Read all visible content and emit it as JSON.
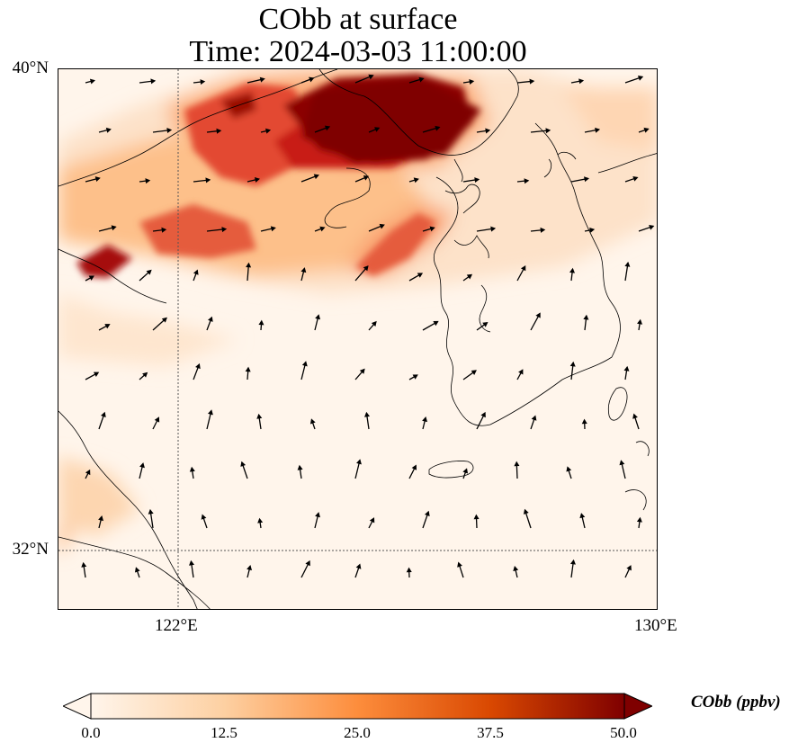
{
  "title": {
    "line1": "CObb at surface",
    "line2": "Time: 2024-03-03 11:00:00"
  },
  "map": {
    "variable": "CObb",
    "units": "ppbv",
    "lat_labels": [
      "40°N",
      "32°N"
    ],
    "lon_labels": [
      "122°E",
      "130°E"
    ],
    "extent": {
      "lon_min": 120,
      "lon_max": 130,
      "lat_min": 31,
      "lat_max": 40
    },
    "colormap": [
      "#fff5eb",
      "#fdd0a2",
      "#fd8d3c",
      "#d94801",
      "#7f0000"
    ],
    "background_color": "#fff5eb",
    "coastline_color": "#000000",
    "gridline_style": "dotted"
  },
  "colorbar": {
    "label": "CObb (ppbv)",
    "ticks": [
      "0.0",
      "12.5",
      "25.0",
      "37.5",
      "50.0"
    ],
    "vmin": 0,
    "vmax": 50,
    "extend": "both"
  }
}
